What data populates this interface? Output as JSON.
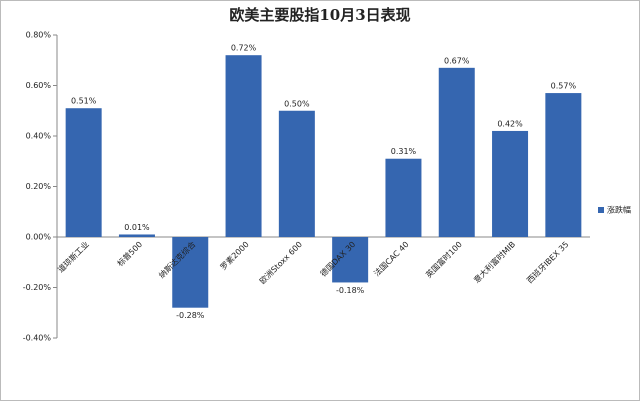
{
  "chart_data": {
    "type": "bar",
    "title": "欧美主要股指10月3日表现",
    "categories": [
      "道琼斯工业",
      "标普500",
      "纳斯达克综合",
      "罗素2000",
      "欧洲Stoxx 600",
      "德国DAX 30",
      "法国CAC 40",
      "英国富时100",
      "意大利富时MIB",
      "西班牙IBEX 35"
    ],
    "series": [
      {
        "name": "涨跌幅",
        "color": "#3566b0",
        "values": [
          0.51,
          0.01,
          -0.28,
          0.72,
          0.5,
          -0.18,
          0.31,
          0.67,
          0.42,
          0.57
        ],
        "value_labels": [
          "0.51%",
          "0.01%",
          "-0.28%",
          "0.72%",
          "0.50%",
          "-0.18%",
          "0.31%",
          "0.67%",
          "0.42%",
          "0.57%"
        ]
      }
    ],
    "ylim": [
      -0.4,
      0.8
    ],
    "yticks": [
      {
        "value": -0.4,
        "label": "-0.40%"
      },
      {
        "value": -0.2,
        "label": "-0.20%"
      },
      {
        "value": 0,
        "label": "0.00%"
      },
      {
        "value": 0.2,
        "label": "0.20%"
      },
      {
        "value": 0.4,
        "label": "0.40%"
      },
      {
        "value": 0.6,
        "label": "0.60%"
      },
      {
        "value": 0.8,
        "label": "0.80%"
      }
    ],
    "grid": false,
    "legend": "right"
  }
}
